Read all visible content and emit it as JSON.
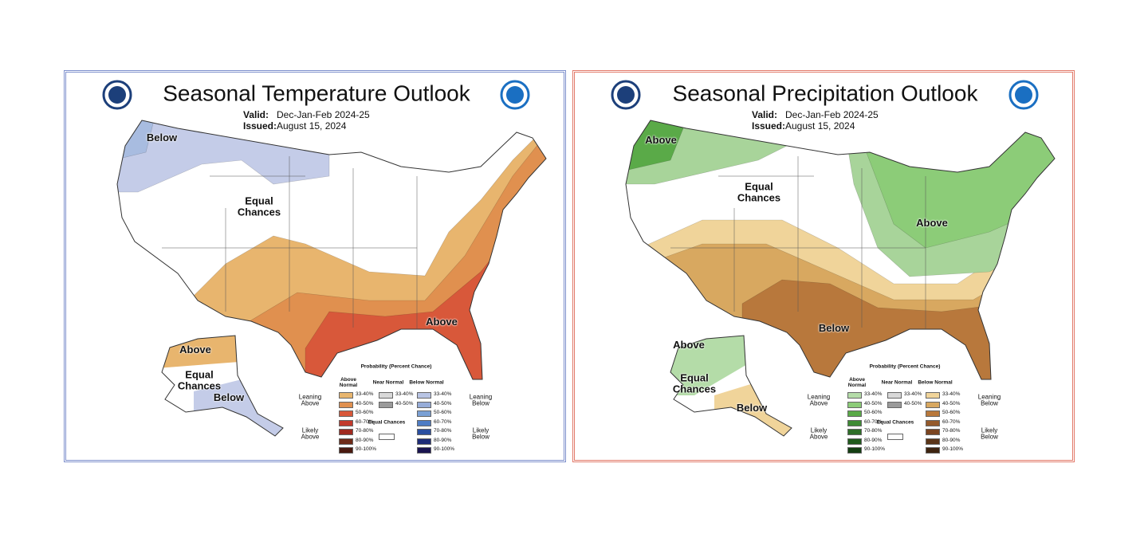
{
  "panels": [
    {
      "title": "Seasonal Temperature Outlook",
      "valid_label": "Valid:",
      "valid": "Dec-Jan-Feb 2024-25",
      "issued_label": "Issued:",
      "issued": "August 15, 2024",
      "map_labels": [
        "Below",
        "Equal Chances",
        "Above",
        "Above",
        "Equal Chances",
        "Below"
      ],
      "legend": {
        "title": "Probability (Percent Chance)",
        "columns": [
          {
            "name": "Above Normal",
            "colors": [
              "#e8b56e",
              "#e0904f",
              "#d8583a",
              "#c23a2c",
              "#a02a20",
              "#6e2a18",
              "#4a1a10"
            ]
          },
          {
            "name": "Near Normal",
            "colors": [
              "#d8d8d8",
              "#9a9a9a"
            ]
          },
          {
            "name": "Below Normal",
            "colors": [
              "#b8c4e4",
              "#96acd8",
              "#7aa0d4",
              "#4e7cc4",
              "#2a4ea0",
              "#1e2c78",
              "#1a1450"
            ]
          }
        ],
        "ranges": [
          "33-40%",
          "40-50%",
          "50-60%",
          "60-70%",
          "70-80%",
          "80-90%",
          "90-100%"
        ],
        "equal_chances": "Equal Chances",
        "left_groups": [
          "Leaning Above",
          "Likely Above"
        ],
        "right_groups": [
          "Leaning Below",
          "Likely Below"
        ]
      }
    },
    {
      "title": "Seasonal Precipitation Outlook",
      "valid_label": "Valid:",
      "valid": "Dec-Jan-Feb 2024-25",
      "issued_label": "Issued:",
      "issued": "August 15, 2024",
      "map_labels": [
        "Above",
        "Equal Chances",
        "Above",
        "Below",
        "Above",
        "Equal Chances",
        "Below"
      ],
      "legend": {
        "title": "Probability (Percent Chance)",
        "columns": [
          {
            "name": "Above Normal",
            "colors": [
              "#b4dca8",
              "#8ccc78",
              "#5aaa48",
              "#3e8a34",
              "#2e6e28",
              "#205a1c",
              "#143e12"
            ]
          },
          {
            "name": "Near Normal",
            "colors": [
              "#d8d8d8",
              "#9a9a9a"
            ]
          },
          {
            "name": "Below Normal",
            "colors": [
              "#f0d49a",
              "#d8a860",
              "#b8783c",
              "#945a2c",
              "#7a4420",
              "#5a3418",
              "#3e2410"
            ]
          }
        ],
        "ranges": [
          "33-40%",
          "40-50%",
          "50-60%",
          "60-70%",
          "70-80%",
          "80-90%",
          "90-100%"
        ],
        "equal_chances": "Equal Chances",
        "left_groups": [
          "Leaning Above",
          "Likely Above"
        ],
        "right_groups": [
          "Leaning Below",
          "Likely Below"
        ]
      }
    }
  ]
}
